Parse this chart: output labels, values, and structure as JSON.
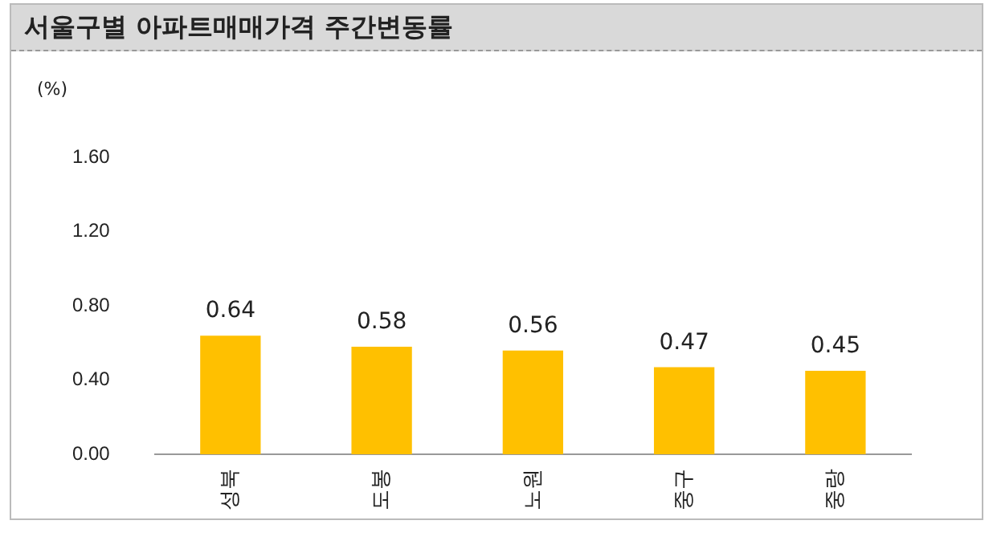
{
  "chart_data": {
    "type": "bar",
    "title": "서울구별 아파트매매가격 주간변동률",
    "ylabel": "(%)",
    "categories": [
      "성북",
      "도봉",
      "노원",
      "중구",
      "중랑"
    ],
    "values": [
      0.64,
      0.58,
      0.56,
      0.47,
      0.45
    ],
    "color": "#ffc000",
    "ylim": [
      0,
      1.6
    ],
    "yticks": [
      {
        "value": 0,
        "label": "0.00"
      },
      {
        "value": 0.4,
        "label": "0.40"
      },
      {
        "value": 0.8,
        "label": "0.80"
      },
      {
        "value": 1.2,
        "label": "1.20"
      },
      {
        "value": 1.6,
        "label": "1.60"
      }
    ],
    "data_labels": true,
    "grid": false,
    "legend": false
  }
}
